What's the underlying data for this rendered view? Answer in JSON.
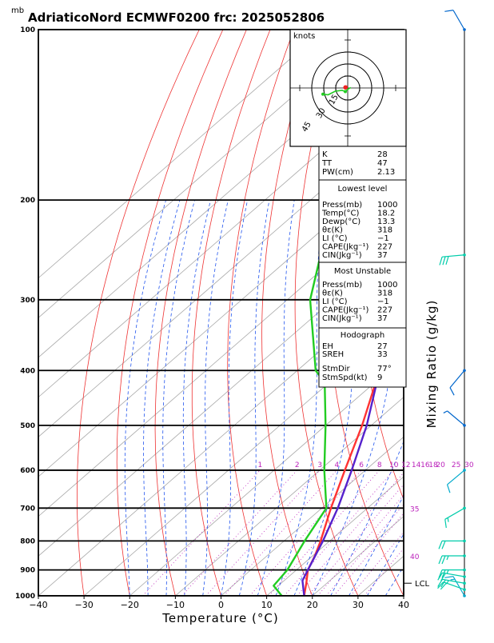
{
  "title": "AdriaticoNord ECMWF0200  frc: 2025052806",
  "chart_data": {
    "type": "skew-t log-p sounding",
    "x_axis": {
      "label": "Temperature (°C)",
      "range": [
        -40,
        40
      ],
      "ticks": [
        -40,
        -30,
        -20,
        -10,
        0,
        10,
        20,
        30,
        40
      ],
      "tick_labels": [
        "−40",
        "−30",
        "−20",
        "−10",
        "0",
        "10",
        "20",
        "30",
        "40"
      ]
    },
    "y_axis": {
      "unit_label": "mb",
      "scale": "log",
      "range": [
        1000,
        100
      ],
      "labeled_ticks": [
        100,
        200,
        300,
        400,
        500,
        600,
        700,
        800,
        900,
        1000
      ]
    },
    "mixing_ratio": {
      "label": "Mixing Ratio (g/kg)",
      "values": [
        1,
        2,
        3,
        4,
        6,
        8,
        10,
        12,
        14,
        16,
        18,
        20,
        25,
        30
      ],
      "value_labels": [
        "1",
        "2",
        "3",
        "4",
        "6",
        "8",
        "10",
        "12",
        "14",
        "16",
        "18",
        "20",
        "25",
        "30"
      ],
      "side_labels": [
        "35",
        "40"
      ]
    },
    "lcl_label": "LCL",
    "series": [
      {
        "role": "temperature",
        "color": "#ff3333",
        "points": [
          {
            "p": 1000,
            "t": 18.2
          },
          {
            "p": 950,
            "t": 15.5
          },
          {
            "p": 900,
            "t": 12.5
          },
          {
            "p": 850,
            "t": 10.5
          },
          {
            "p": 800,
            "t": 8.0
          },
          {
            "p": 700,
            "t": 2.0
          },
          {
            "p": 600,
            "t": -4.5
          },
          {
            "p": 500,
            "t": -12.0
          },
          {
            "p": 400,
            "t": -22.0
          },
          {
            "p": 300,
            "t": -36.0
          },
          {
            "p": 250,
            "t": -46.0
          },
          {
            "p": 200,
            "t": -50.0
          },
          {
            "p": 150,
            "t": -53.0
          },
          {
            "p": 100,
            "t": -56.0
          }
        ]
      },
      {
        "role": "dewpoint",
        "color": "#22cc22",
        "points": [
          {
            "p": 1000,
            "t": 13.3
          },
          {
            "p": 960,
            "t": 9.0
          },
          {
            "p": 900,
            "t": 8.0
          },
          {
            "p": 800,
            "t": 4.5
          },
          {
            "p": 700,
            "t": 1.0
          },
          {
            "p": 600,
            "t": -9.0
          },
          {
            "p": 500,
            "t": -20.0
          },
          {
            "p": 420,
            "t": -31.0
          },
          {
            "p": 400,
            "t": -36.0
          },
          {
            "p": 300,
            "t": -55.0
          },
          {
            "p": 250,
            "t": -64.0
          },
          {
            "p": 200,
            "t": -70.0
          },
          {
            "p": 150,
            "t": -76.0
          },
          {
            "p": 100,
            "t": -83.0
          }
        ]
      },
      {
        "role": "parcel",
        "color": "#5522cc",
        "points": [
          {
            "p": 1000,
            "t": 18.2
          },
          {
            "p": 940,
            "t": 14.0
          },
          {
            "p": 900,
            "t": 12.5
          },
          {
            "p": 800,
            "t": 8.5
          },
          {
            "p": 700,
            "t": 3.5
          },
          {
            "p": 600,
            "t": -3.0
          },
          {
            "p": 500,
            "t": -11.0
          },
          {
            "p": 400,
            "t": -22.0
          },
          {
            "p": 300,
            "t": -38.0
          },
          {
            "p": 250,
            "t": -48.0
          },
          {
            "p": 200,
            "t": -60.0
          },
          {
            "p": 150,
            "t": -73.0
          },
          {
            "p": 120,
            "t": -82.0
          }
        ]
      }
    ],
    "hodograph": {
      "label": "knots",
      "ring_labels": [
        "15",
        "30",
        "45"
      ],
      "points": [
        [
          -1.5,
          0.2
        ],
        [
          -0.2,
          -0.5
        ],
        [
          1.2,
          -1.8
        ],
        [
          2.8,
          -1.2
        ],
        [
          6.2,
          -1.6
        ],
        [
          9.8,
          -3.4
        ],
        [
          12.4,
          -3.1
        ],
        [
          12.9,
          -2.9
        ]
      ],
      "storm_motion": [
        -1.1,
        0.3
      ]
    },
    "wind_barbs": [
      {
        "p": 1000,
        "dir": 330,
        "spd": 15,
        "color": "#00aacc"
      },
      {
        "p": 975,
        "dir": 290,
        "spd": 20,
        "color": "#00ccaa"
      },
      {
        "p": 950,
        "dir": 280,
        "spd": 25,
        "color": "#00ccaa"
      },
      {
        "p": 925,
        "dir": 280,
        "spd": 20,
        "color": "#00ccaa"
      },
      {
        "p": 900,
        "dir": 270,
        "spd": 25,
        "color": "#00ccaa"
      },
      {
        "p": 850,
        "dir": 270,
        "spd": 25,
        "color": "#00ccaa"
      },
      {
        "p": 800,
        "dir": 270,
        "spd": 20,
        "color": "#00ccaa"
      },
      {
        "p": 700,
        "dir": 240,
        "spd": 15,
        "color": "#00ccaa"
      },
      {
        "p": 600,
        "dir": 230,
        "spd": 10,
        "color": "#00aacc"
      },
      {
        "p": 500,
        "dir": 310,
        "spd": 5,
        "color": "#0066cc"
      },
      {
        "p": 400,
        "dir": 220,
        "spd": 10,
        "color": "#0066cc"
      },
      {
        "p": 250,
        "dir": 265,
        "spd": 30,
        "color": "#00ccaa"
      },
      {
        "p": 100,
        "dir": 330,
        "spd": 10,
        "color": "#0066cc"
      }
    ]
  },
  "indices_panel": {
    "general": [
      {
        "label": "K",
        "value": "28"
      },
      {
        "label": "TT",
        "value": "47"
      },
      {
        "label": "PW(cm)",
        "value": "2.13"
      }
    ],
    "lowest_level": {
      "header": "Lowest level",
      "rows": [
        {
          "label": "Press(mb)",
          "value": "1000"
        },
        {
          "label": "Temp(°C)",
          "value": "18.2"
        },
        {
          "label": "Dewp(°C)",
          "value": "13.3"
        },
        {
          "label": "θε(K)",
          "value": "318"
        },
        {
          "label": "LI (°C)",
          "value": "−1"
        },
        {
          "label": "CAPE(Jkg⁻¹)",
          "value": "227"
        },
        {
          "label": "CIN(Jkg⁻¹)",
          "value": "37"
        }
      ]
    },
    "most_unstable": {
      "header": "Most Unstable",
      "rows": [
        {
          "label": "Press(mb)",
          "value": "1000"
        },
        {
          "label": "θε(K)",
          "value": "318"
        },
        {
          "label": "LI (°C)",
          "value": "−1"
        },
        {
          "label": "CAPE(Jkg⁻¹)",
          "value": "227"
        },
        {
          "label": "CIN(Jkg⁻¹)",
          "value": "37"
        }
      ]
    },
    "hodograph_stats": {
      "header": "Hodograph",
      "rows": [
        {
          "label": "EH",
          "value": "27"
        },
        {
          "label": "SREH",
          "value": "33"
        },
        {
          "label": "StmDir",
          "value": "77°"
        },
        {
          "label": "StmSpd(kt)",
          "value": "9"
        }
      ]
    }
  }
}
